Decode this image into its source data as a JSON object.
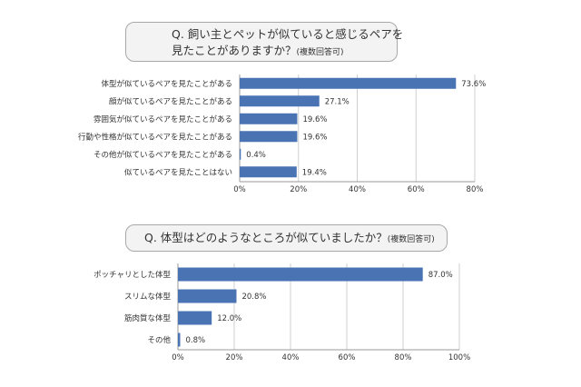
{
  "chart_data": [
    {
      "type": "bar",
      "orientation": "horizontal",
      "title_lines": [
        "Q. 飼い主とペットが似ていると感じるペアを",
        "見たことがありますか？"
      ],
      "title_note": "(複数回答可)",
      "categories": [
        "体型が似ているペアを見たことがある",
        "顔が似ているペアを見たことがある",
        "雰囲気が似ているペアを見たことがある",
        "行動や性格が似ているペアを見たことがある",
        "その他が似ているペアを見たことがある",
        "似ているペアを見たことはない"
      ],
      "values": [
        73.6,
        27.1,
        19.6,
        19.6,
        0.4,
        19.4
      ],
      "value_labels": [
        "73.6%",
        "27.1%",
        "19.6%",
        "19.6%",
        "0.4%",
        "19.4%"
      ],
      "xlim": [
        0,
        80
      ],
      "xticks": [
        "0%",
        "20%",
        "40%",
        "60%",
        "80%"
      ],
      "grid": true,
      "color": "#4a73b3"
    },
    {
      "type": "bar",
      "orientation": "horizontal",
      "title_lines": [
        "Q. 体型はどのようなところが似ていましたか？"
      ],
      "title_note": "(複数回答可)",
      "categories": [
        "ポッチャリとした体型",
        "スリムな体型",
        "筋肉質な体型",
        "その他"
      ],
      "values": [
        87.0,
        20.8,
        12.0,
        0.8
      ],
      "value_labels": [
        "87.0%",
        "20.8%",
        "12.0%",
        "0.8%"
      ],
      "xlim": [
        0,
        100
      ],
      "xticks": [
        "0%",
        "20%",
        "40%",
        "60%",
        "80%",
        "100%"
      ],
      "grid": true,
      "color": "#4a73b3"
    }
  ]
}
